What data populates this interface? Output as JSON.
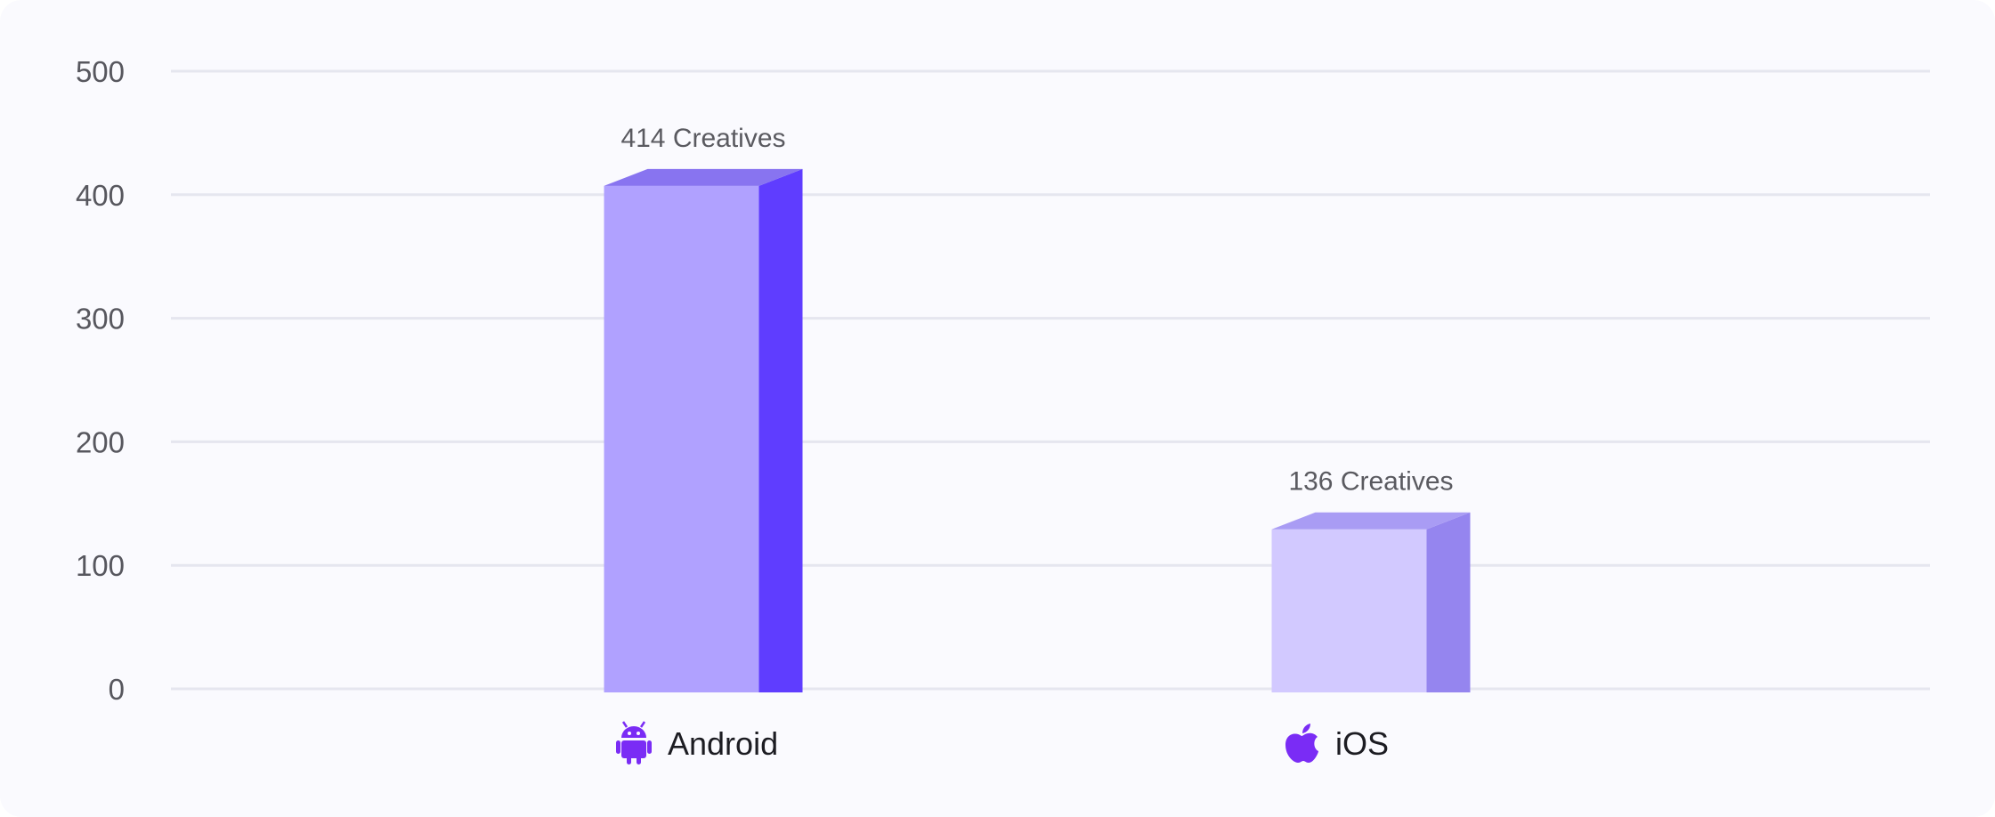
{
  "chart_data": {
    "type": "bar",
    "categories": [
      "Android",
      "iOS"
    ],
    "category_icons": [
      "android-icon",
      "apple-icon"
    ],
    "values": [
      414,
      136
    ],
    "data_labels": [
      "414 Creatives",
      "136 Creatives"
    ],
    "title": "",
    "xlabel": "",
    "ylabel": "",
    "ylim": [
      0,
      500
    ],
    "yticks": [
      0,
      100,
      200,
      300,
      400,
      500
    ],
    "ytick_labels": [
      "0",
      "100",
      "200",
      "300",
      "400",
      "500"
    ],
    "grid": true,
    "legend": "none"
  },
  "colors": {
    "android_front": "#b0a1ff",
    "android_side": "#5f3dff",
    "android_top": "#8874f0",
    "ios_front": "#d2c9ff",
    "ios_side": "#9585ef",
    "ios_top": "#a99cf4",
    "icon": "#7a2cf5"
  }
}
